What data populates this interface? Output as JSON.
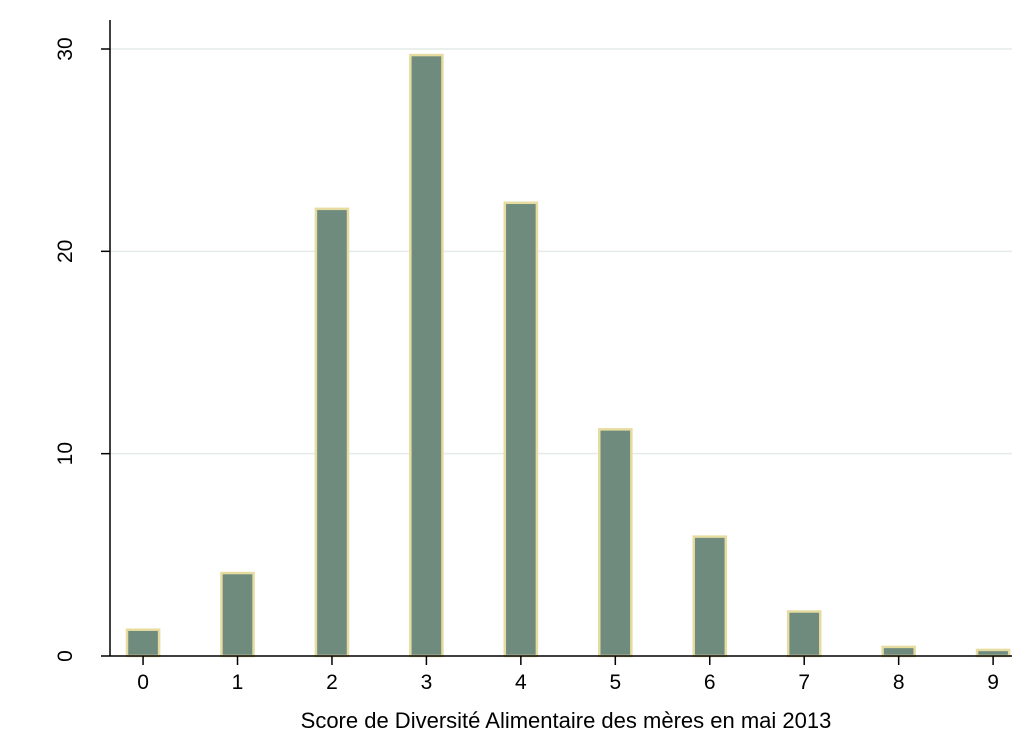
{
  "chart_data": {
    "type": "bar",
    "title": "",
    "xlabel": "Score de Diversité Alimentaire des mères en mai 2013",
    "ylabel": "",
    "x": [
      0,
      1,
      2,
      3,
      4,
      5,
      6,
      7,
      8,
      9
    ],
    "values": [
      1.3,
      4.1,
      22.1,
      29.7,
      22.4,
      11.2,
      5.9,
      2.2,
      0.45,
      0.3
    ],
    "xlim": [
      -0.35,
      9.2
    ],
    "ylim": [
      0,
      30
    ],
    "xticks": [
      "0",
      "1",
      "2",
      "3",
      "4",
      "5",
      "6",
      "7",
      "8",
      "9"
    ],
    "yticks": [
      "0",
      "10",
      "20",
      "30"
    ],
    "grid": true,
    "legend": "none",
    "colors": {
      "bar_fill": "#6e8b7e",
      "bar_outline": "#e6dca0",
      "gridline": "#e4ece8",
      "axis": "#000000",
      "background": "#ffffff"
    }
  }
}
